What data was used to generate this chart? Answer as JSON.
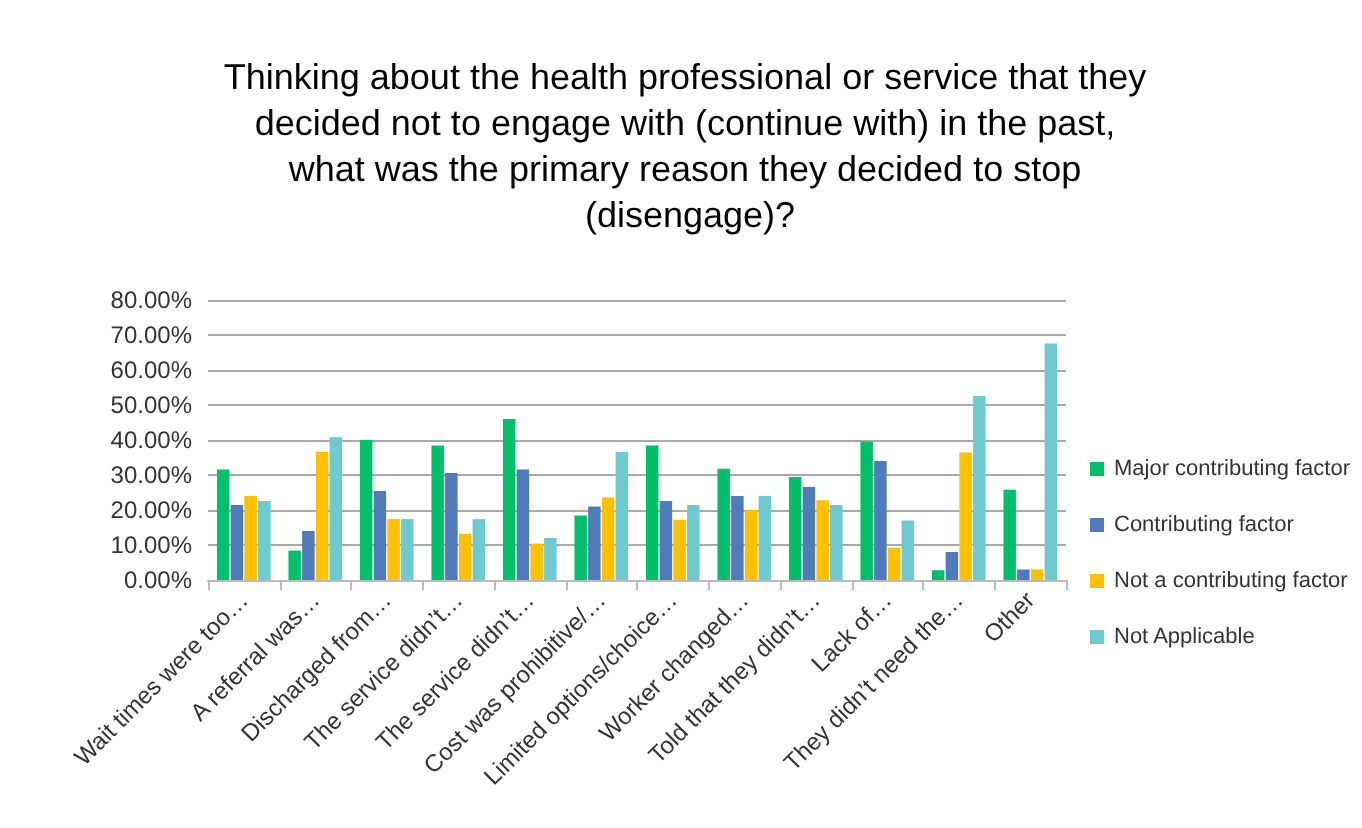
{
  "chart_data": {
    "type": "bar",
    "title": "Thinking about the health professional or service that they decided not to engage with (continue with) in the past, what was the primary reason they decided to stop (disengage)?",
    "categories": [
      "Wait times were too…",
      "A referral was…",
      "Discharged from…",
      "The service didn’t…",
      "The service didn’t…",
      "Cost was prohibitive/…",
      "Limited options/choice…",
      "Worker changed…",
      "Told that they didn’t…",
      "Lack of…",
      "They didn’t need the…",
      "Other"
    ],
    "series": [
      {
        "name": "Major contributing factor",
        "color": "#00c06b",
        "values": [
          31.6,
          8.4,
          40,
          38.4,
          46,
          18.4,
          38.4,
          31.8,
          29.4,
          39.6,
          2.8,
          25.8
        ]
      },
      {
        "name": "Contributing factor",
        "color": "#4f7bbb",
        "values": [
          21.4,
          14,
          25.4,
          30.6,
          31.6,
          21,
          22.6,
          24,
          26.6,
          34,
          8,
          3
        ]
      },
      {
        "name": "Not a contributing factor",
        "color": "#ffc000",
        "values": [
          24,
          36.6,
          17.4,
          13.2,
          10.4,
          23.6,
          17.2,
          20,
          22.8,
          9.2,
          36.4,
          3
        ]
      },
      {
        "name": "Not Applicable",
        "color": "#6ccad0",
        "values": [
          22.6,
          40.8,
          17.4,
          17.4,
          12,
          36.6,
          21.4,
          24,
          21.4,
          17,
          52.6,
          67.6
        ]
      }
    ],
    "ylim": [
      0,
      80
    ],
    "yticks": [
      {
        "value": 0,
        "label": "0.00%"
      },
      {
        "value": 10,
        "label": "10.00%"
      },
      {
        "value": 20,
        "label": "20.00%"
      },
      {
        "value": 30,
        "label": "30.00%"
      },
      {
        "value": 40,
        "label": "40.00%"
      },
      {
        "value": 50,
        "label": "50.00%"
      },
      {
        "value": 60,
        "label": "60.00%"
      },
      {
        "value": 70,
        "label": "70.00%"
      },
      {
        "value": 80,
        "label": "80.00%"
      }
    ],
    "grid": "y",
    "legend": "right"
  }
}
